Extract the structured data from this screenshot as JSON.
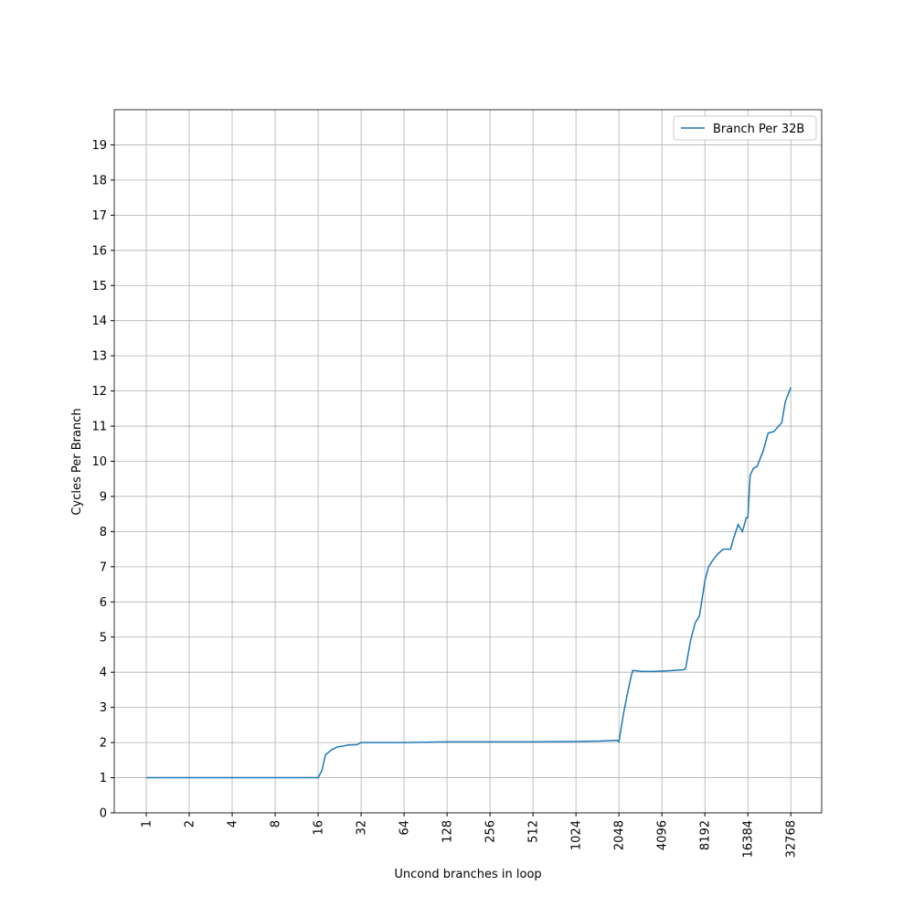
{
  "chart_data": {
    "type": "line",
    "x_label": "Uncond branches in loop",
    "y_label": "Cycles Per Branch",
    "x_scale": "log2",
    "xlim": [
      0.597,
      53900
    ],
    "xticks": [
      1,
      2,
      4,
      8,
      16,
      32,
      64,
      128,
      256,
      512,
      1024,
      2048,
      4096,
      8192,
      16384,
      32768
    ],
    "ylim": [
      0,
      20
    ],
    "yticks": [
      0,
      1,
      2,
      3,
      4,
      5,
      6,
      7,
      8,
      9,
      10,
      11,
      12,
      13,
      14,
      15,
      16,
      17,
      18,
      19
    ],
    "grid": true,
    "legend": "upper right",
    "series": [
      {
        "name": "Branch Per 32B",
        "color": "#1f77b4",
        "x": [
          1,
          2,
          4,
          8,
          16,
          17,
          18,
          20,
          22,
          24,
          26,
          30,
          32,
          64,
          128,
          256,
          512,
          1024,
          1500,
          2000,
          2048,
          2200,
          2350,
          2500,
          2560,
          3000,
          3500,
          4096,
          5000,
          5800,
          6000,
          6500,
          7000,
          7500,
          8192,
          8700,
          9360,
          10000,
          11000,
          12400,
          13000,
          14000,
          15000,
          16000,
          16384,
          17000,
          17900,
          19000,
          21000,
          22700,
          25000,
          28300,
          30000,
          32768
        ],
        "values": [
          1,
          1,
          1,
          1,
          1,
          1.2,
          1.65,
          1.8,
          1.88,
          1.9,
          1.93,
          1.94,
          2.0,
          2.0,
          2.02,
          2.02,
          2.02,
          2.03,
          2.04,
          2.06,
          2.02,
          2.8,
          3.4,
          3.9,
          4.05,
          4.02,
          4.02,
          4.03,
          4.05,
          4.07,
          4.1,
          4.9,
          5.4,
          5.6,
          6.6,
          7.0,
          7.2,
          7.35,
          7.5,
          7.5,
          7.8,
          8.2,
          8.0,
          8.4,
          8.4,
          9.6,
          9.8,
          9.85,
          10.3,
          10.8,
          10.85,
          11.1,
          11.7,
          12.1
        ]
      }
    ]
  }
}
